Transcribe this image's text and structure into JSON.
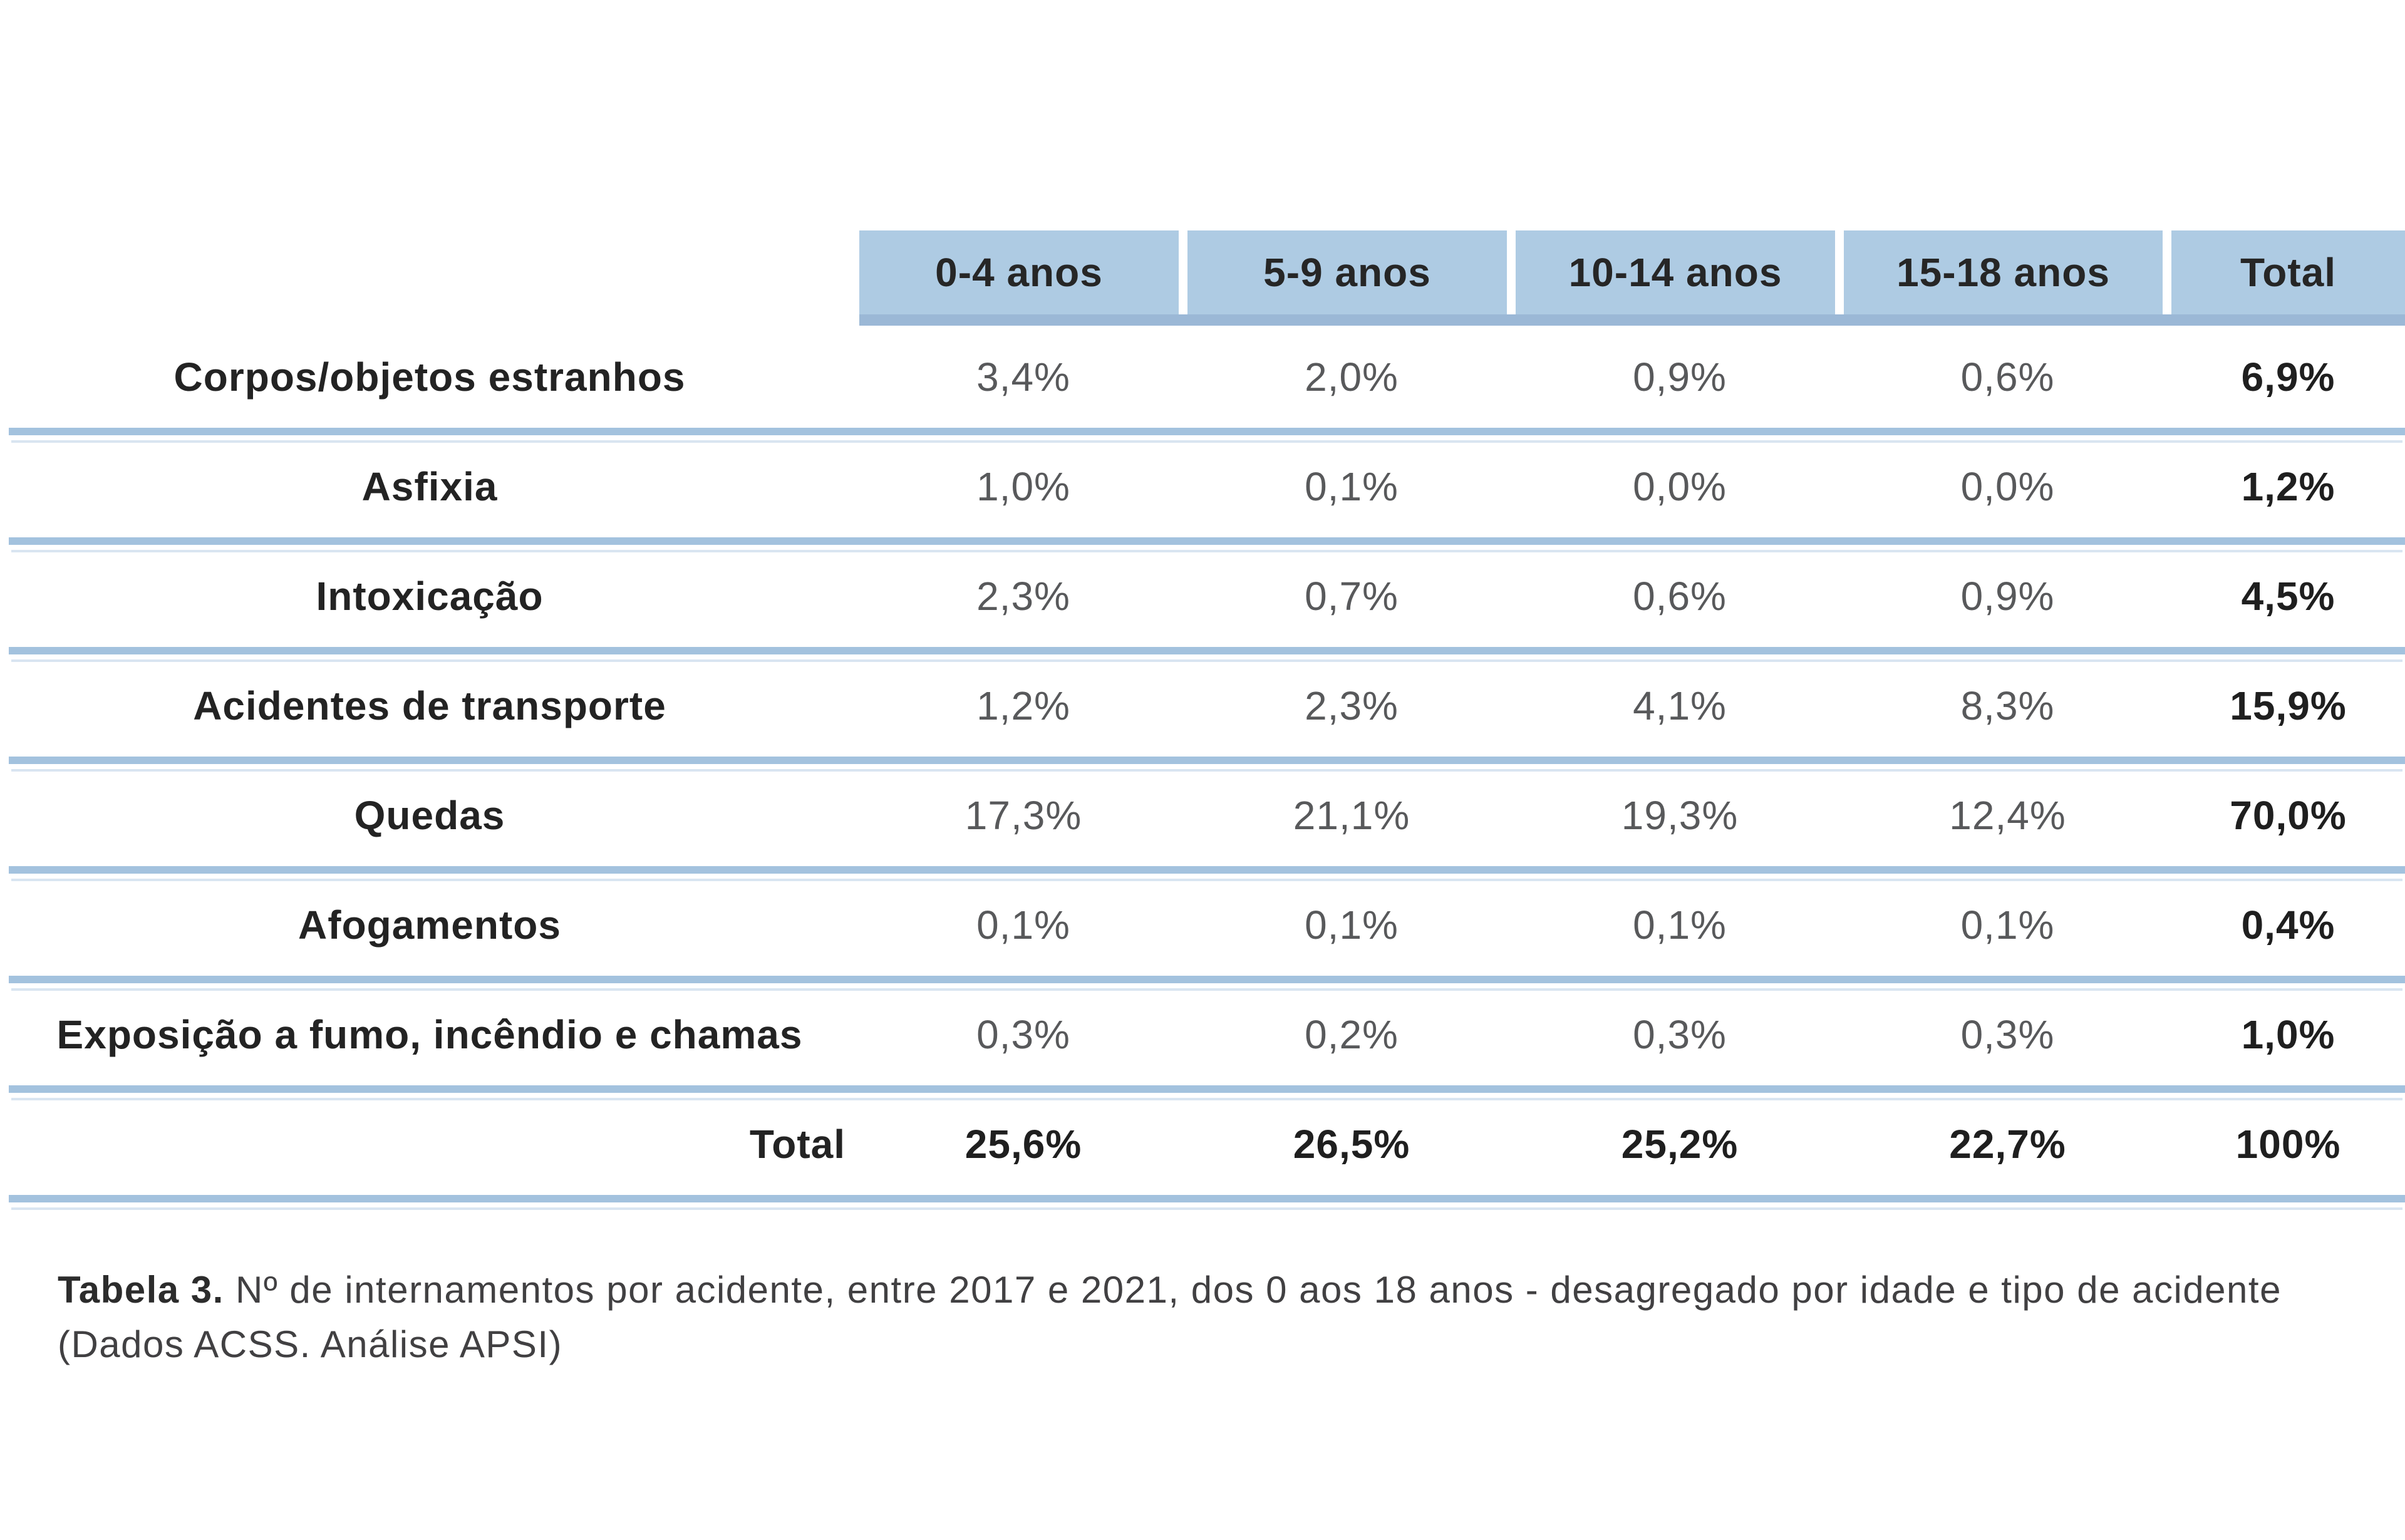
{
  "table": {
    "columns": [
      "0-4 anos",
      "5-9 anos",
      "10-14 anos",
      "15-18 anos",
      "Total"
    ],
    "rows": [
      {
        "label": "Corpos/objetos estranhos",
        "values": [
          "3,4%",
          "2,0%",
          "0,9%",
          "0,6%",
          "6,9%"
        ],
        "is_total_row": false
      },
      {
        "label": "Asfixia",
        "values": [
          "1,0%",
          "0,1%",
          "0,0%",
          "0,0%",
          "1,2%"
        ],
        "is_total_row": false
      },
      {
        "label": "Intoxicação",
        "values": [
          "2,3%",
          "0,7%",
          "0,6%",
          "0,9%",
          "4,5%"
        ],
        "is_total_row": false
      },
      {
        "label": "Acidentes de transporte",
        "values": [
          "1,2%",
          "2,3%",
          "4,1%",
          "8,3%",
          "15,9%"
        ],
        "is_total_row": false
      },
      {
        "label": "Quedas",
        "values": [
          "17,3%",
          "21,1%",
          "19,3%",
          "12,4%",
          "70,0%"
        ],
        "is_total_row": false
      },
      {
        "label": "Afogamentos",
        "values": [
          "0,1%",
          "0,1%",
          "0,1%",
          "0,1%",
          "0,4%"
        ],
        "is_total_row": false
      },
      {
        "label": "Exposição a fumo, incêndio e chamas",
        "values": [
          "0,3%",
          "0,2%",
          "0,3%",
          "0,3%",
          "1,0%"
        ],
        "is_total_row": false
      },
      {
        "label": "Total",
        "values": [
          "25,6%",
          "26,5%",
          "25,2%",
          "22,7%",
          "100%"
        ],
        "is_total_row": true
      }
    ]
  },
  "caption": {
    "label": "Tabela 3.",
    "text": " Nº de internamentos por acidente, entre 2017 e 2021, dos 0 aos 18 anos - desagregado por idade e tipo de acidente (Dados ACSS. Análise APSI)"
  },
  "colors": {
    "header_fill": "#aecbe3",
    "header_rule": "#9bb8d6",
    "separator": "#a3c2de",
    "separator_echo": "#d9e5f1",
    "label_text": "#232323",
    "value_text": "#58595b",
    "total_text": "#1f1f1f",
    "caption_text": "#414042"
  },
  "chart_data": {
    "type": "table",
    "title": "Tabela 3. Nº de internamentos por acidente, entre 2017 e 2021, dos 0 aos 18 anos - desagregado por idade e tipo de acidente (Dados ACSS. Análise APSI)",
    "categories": [
      "0-4 anos",
      "5-9 anos",
      "10-14 anos",
      "15-18 anos",
      "Total"
    ],
    "series": [
      {
        "name": "Corpos/objetos estranhos",
        "values": [
          3.4,
          2.0,
          0.9,
          0.6,
          6.9
        ]
      },
      {
        "name": "Asfixia",
        "values": [
          1.0,
          0.1,
          0.0,
          0.0,
          1.2
        ]
      },
      {
        "name": "Intoxicação",
        "values": [
          2.3,
          0.7,
          0.6,
          0.9,
          4.5
        ]
      },
      {
        "name": "Acidentes de transporte",
        "values": [
          1.2,
          2.3,
          4.1,
          8.3,
          15.9
        ]
      },
      {
        "name": "Quedas",
        "values": [
          17.3,
          21.1,
          19.3,
          12.4,
          70.0
        ]
      },
      {
        "name": "Afogamentos",
        "values": [
          0.1,
          0.1,
          0.1,
          0.1,
          0.4
        ]
      },
      {
        "name": "Exposição a fumo, incêndio e chamas",
        "values": [
          0.3,
          0.2,
          0.3,
          0.3,
          1.0
        ]
      },
      {
        "name": "Total",
        "values": [
          25.6,
          26.5,
          25.2,
          22.7,
          100
        ]
      }
    ],
    "unit": "%"
  }
}
